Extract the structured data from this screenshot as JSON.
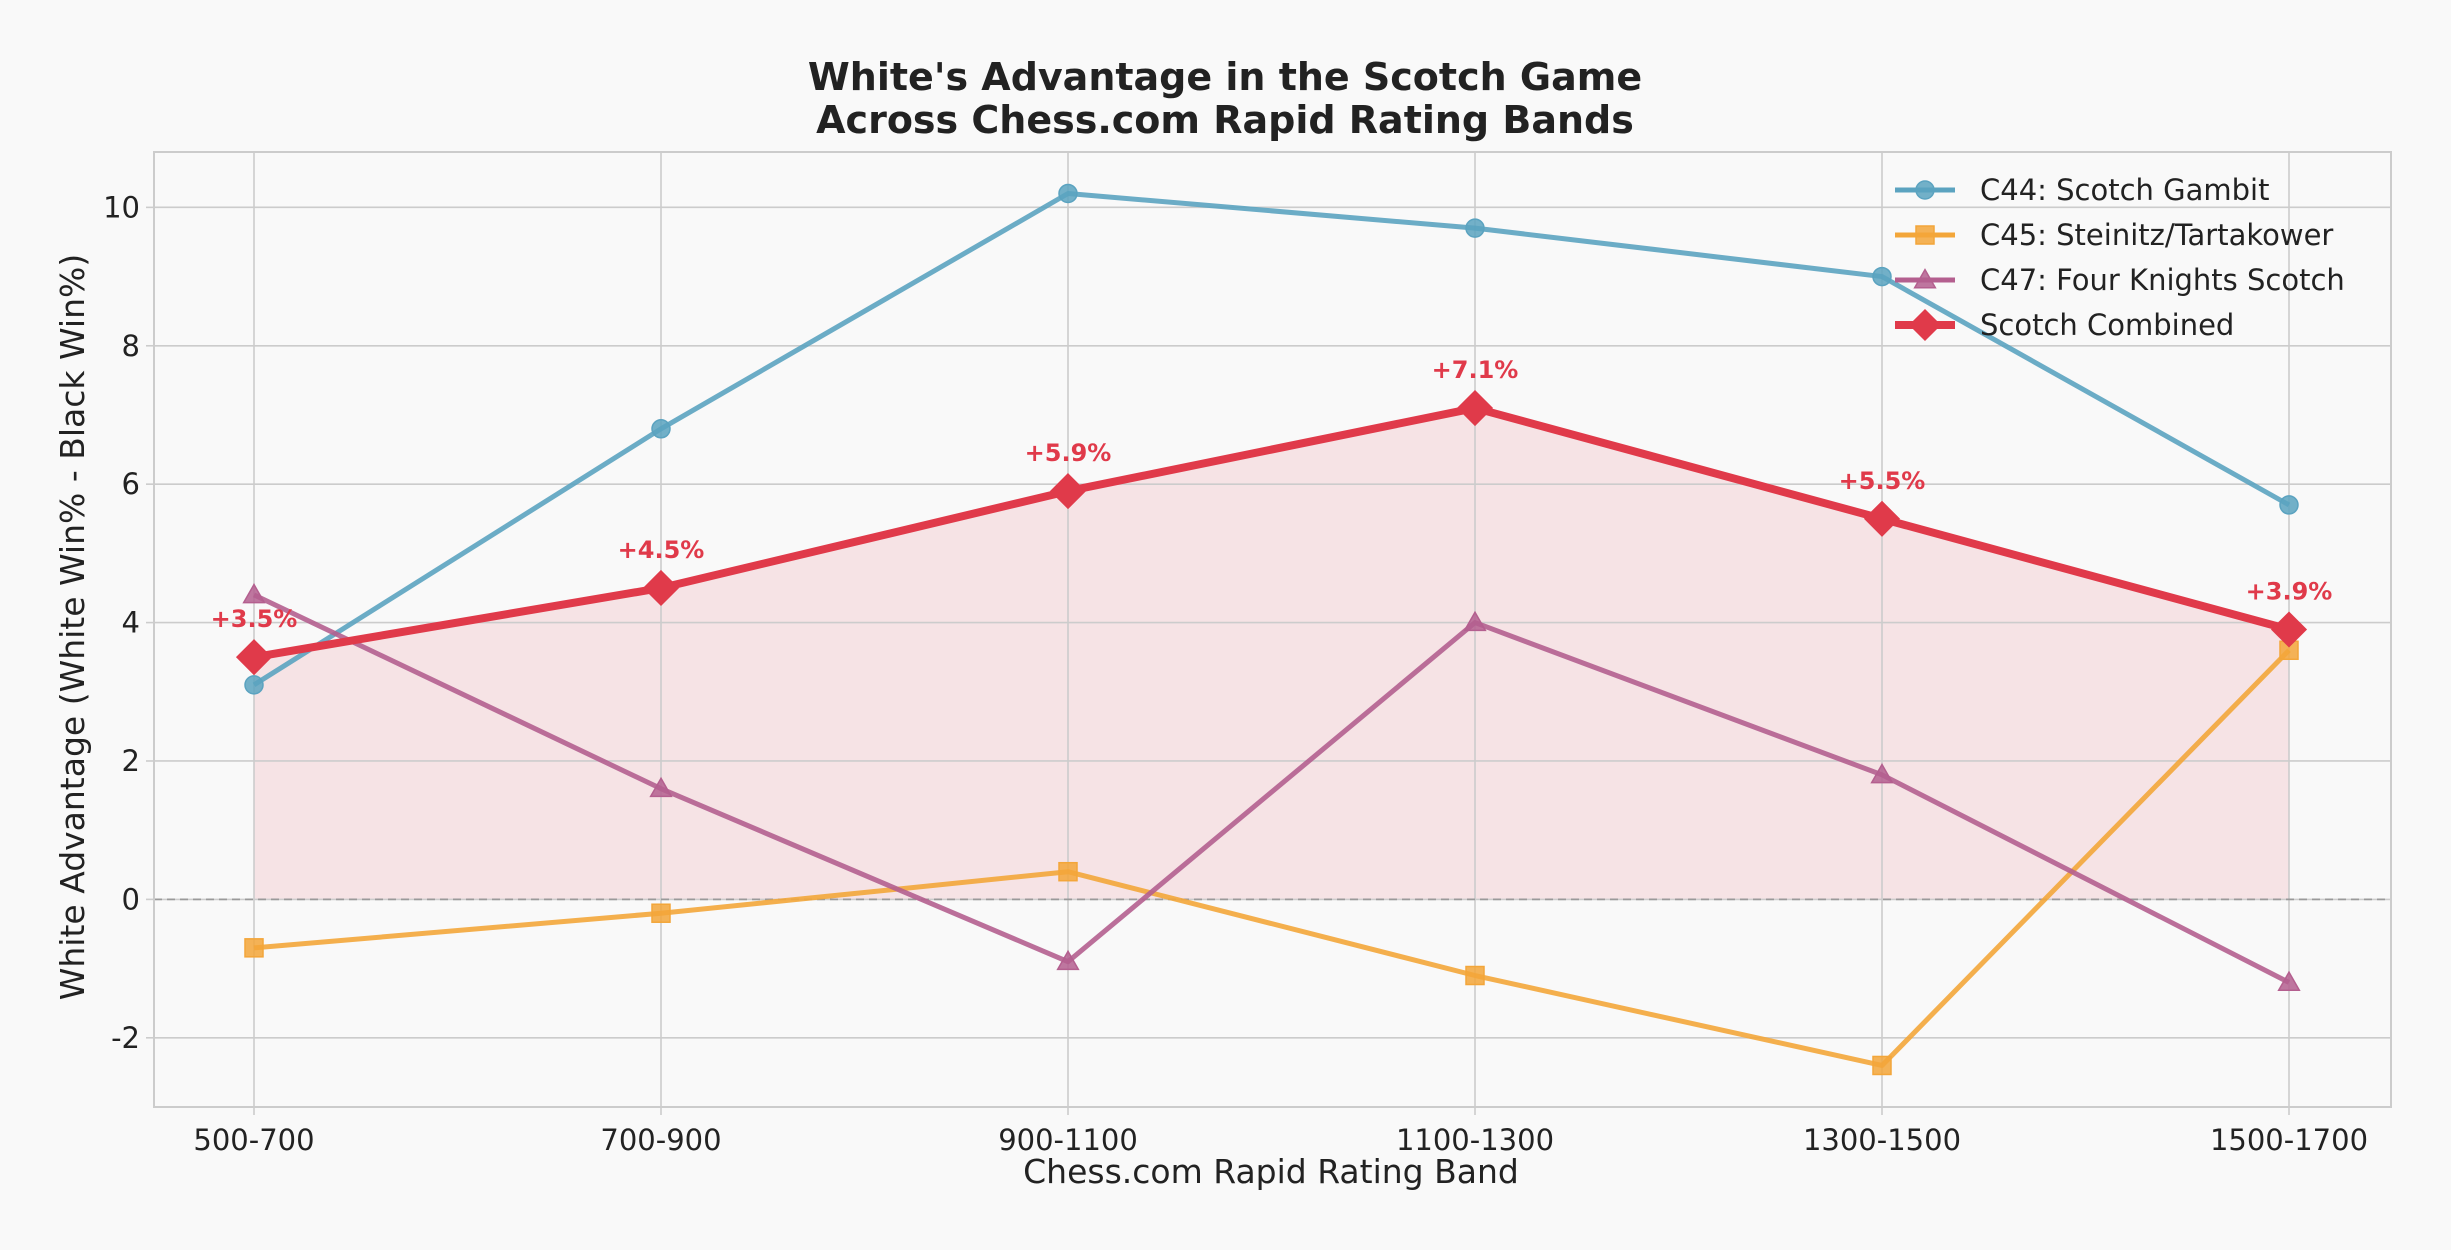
{
  "chart_data": {
    "type": "line",
    "title": "White's Advantage in the Scotch Game",
    "subtitle": "Across Chess.com Rapid Rating Bands",
    "xlabel": "Chess.com Rapid Rating Band",
    "ylabel": "White Advantage (White Win% - Black Win%)",
    "categories": [
      "500-700",
      "700-900",
      "900-1100",
      "1100-1300",
      "1300-1500",
      "1500-1700"
    ],
    "ylim": [
      -3.0,
      10.8
    ],
    "yticks": [
      -2,
      0,
      2,
      4,
      6,
      8,
      10
    ],
    "grid": true,
    "zero_line": true,
    "legend_position": "top-right",
    "series": [
      {
        "name": "C44: Scotch Gambit",
        "values": [
          3.1,
          6.8,
          10.2,
          9.7,
          9.0,
          5.7
        ],
        "color": "#5ba3c0",
        "marker": "circle"
      },
      {
        "name": "C45: Steinitz/Tartakower",
        "values": [
          -0.7,
          -0.2,
          0.4,
          -1.1,
          -2.4,
          3.6
        ],
        "color": "#f3a63a",
        "marker": "square"
      },
      {
        "name": "C47: Four Knights Scotch",
        "values": [
          4.4,
          1.6,
          -0.9,
          4.0,
          1.8,
          -1.2
        ],
        "color": "#b45f8f",
        "marker": "triangle"
      },
      {
        "name": "Scotch Combined",
        "values": [
          3.5,
          4.5,
          5.9,
          7.1,
          5.5,
          3.9
        ],
        "color": "#e03a4a",
        "marker": "diamond",
        "filled_area": true
      }
    ],
    "annotations": [
      "+3.5%",
      "+4.5%",
      "+5.9%",
      "+7.1%",
      "+5.5%",
      "+3.9%"
    ]
  }
}
